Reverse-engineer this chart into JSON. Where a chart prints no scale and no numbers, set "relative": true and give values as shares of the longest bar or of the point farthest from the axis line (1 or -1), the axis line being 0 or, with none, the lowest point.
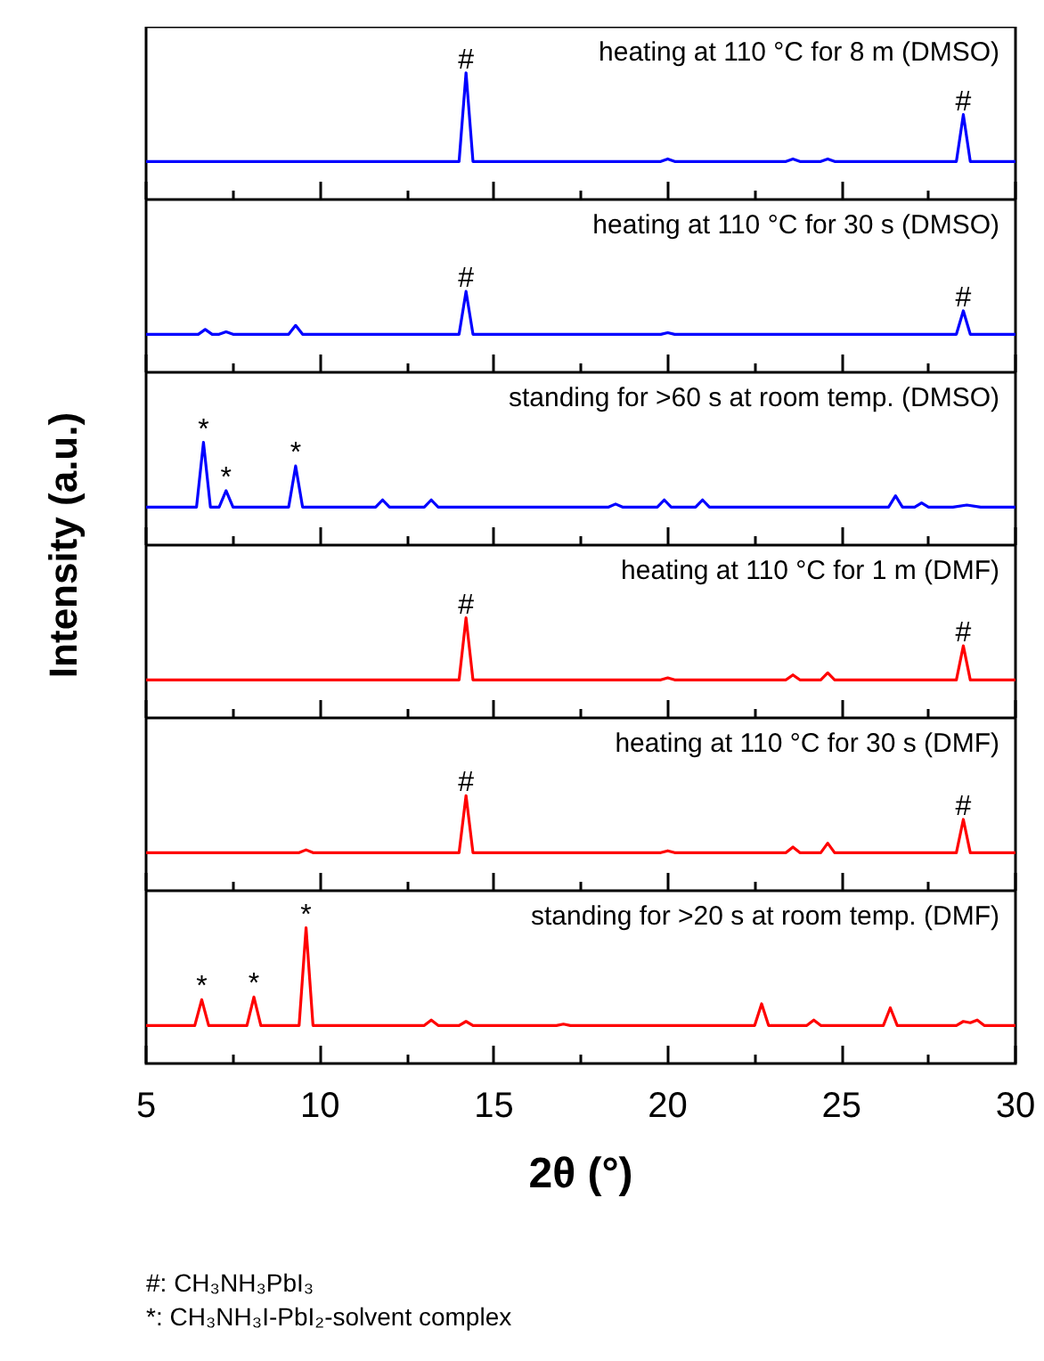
{
  "chart_data": [
    {
      "type": "line",
      "relative": true,
      "title": "heating at 110 °C for 8 m (DMSO)",
      "ylabel": "Intensity (a.u.)",
      "color": "#0000ff",
      "xlim": [
        5,
        30
      ],
      "xticks": [
        5,
        {
          "value": 7.5,
          "label": null
        },
        10,
        {
          "value": 12.5,
          "label": null
        },
        15,
        {
          "value": 17.5,
          "label": null
        },
        20,
        {
          "value": 22.5,
          "label": null
        },
        25,
        {
          "value": 27.5,
          "label": null
        },
        30
      ],
      "tick_labels": false,
      "x": [
        5,
        14.0,
        14.2,
        14.4,
        19.8,
        20.0,
        20.2,
        23.4,
        23.6,
        23.8,
        24.4,
        24.6,
        24.8,
        28.3,
        28.5,
        28.7,
        30
      ],
      "values": [
        0.3,
        0.3,
        1.0,
        0.3,
        0.3,
        0.32,
        0.3,
        0.3,
        0.32,
        0.3,
        0.3,
        0.32,
        0.3,
        0.3,
        0.67,
        0.3,
        0.3
      ],
      "annotations": [
        {
          "text": "#",
          "x": 14.2,
          "y": 1.0
        },
        {
          "text": "#",
          "x": 28.5,
          "y": 0.67
        }
      ]
    },
    {
      "type": "line",
      "relative": true,
      "title": "heating at 110 °C for 30 s (DMSO)",
      "color": "#0000ff",
      "xlim": [
        5,
        30
      ],
      "xticks": [
        5,
        {
          "value": 7.5,
          "label": null
        },
        10,
        {
          "value": 12.5,
          "label": null
        },
        15,
        {
          "value": 17.5,
          "label": null
        },
        20,
        {
          "value": 22.5,
          "label": null
        },
        25,
        {
          "value": 27.5,
          "label": null
        },
        30
      ],
      "tick_labels": false,
      "x": [
        5,
        6.5,
        6.7,
        6.9,
        7.1,
        7.3,
        7.5,
        9.1,
        9.3,
        9.5,
        14.0,
        14.2,
        14.4,
        19.8,
        20.0,
        20.2,
        28.3,
        28.5,
        28.7,
        30
      ],
      "values": [
        0.47,
        0.47,
        0.53,
        0.47,
        0.47,
        0.5,
        0.47,
        0.47,
        0.58,
        0.47,
        0.47,
        1.0,
        0.47,
        0.47,
        0.49,
        0.47,
        0.47,
        0.76,
        0.47,
        0.47
      ],
      "annotations": [
        {
          "text": "#",
          "x": 14.2,
          "y": 1.0
        },
        {
          "text": "#",
          "x": 28.5,
          "y": 0.76
        }
      ]
    },
    {
      "type": "line",
      "relative": true,
      "title": "standing for >60 s at room temp. (DMSO)",
      "color": "#0000ff",
      "xlim": [
        5,
        30
      ],
      "xticks": [
        5,
        {
          "value": 7.5,
          "label": null
        },
        10,
        {
          "value": 12.5,
          "label": null
        },
        15,
        {
          "value": 17.5,
          "label": null
        },
        20,
        {
          "value": 22.5,
          "label": null
        },
        25,
        {
          "value": 27.5,
          "label": null
        },
        30
      ],
      "tick_labels": false,
      "x": [
        5,
        6.45,
        6.65,
        6.85,
        7.1,
        7.3,
        7.5,
        9.1,
        9.3,
        9.5,
        11.6,
        11.8,
        12.0,
        13.0,
        13.2,
        13.4,
        18.3,
        18.5,
        18.7,
        19.7,
        19.9,
        20.1,
        20.8,
        21.0,
        21.2,
        26.35,
        26.55,
        26.75,
        27.1,
        27.3,
        27.5,
        28.2,
        28.6,
        29.0,
        30
      ],
      "values": [
        0.37,
        0.37,
        1.0,
        0.37,
        0.37,
        0.53,
        0.37,
        0.37,
        0.77,
        0.37,
        0.37,
        0.44,
        0.37,
        0.37,
        0.44,
        0.37,
        0.37,
        0.4,
        0.37,
        0.37,
        0.44,
        0.37,
        0.37,
        0.44,
        0.37,
        0.37,
        0.48,
        0.37,
        0.37,
        0.41,
        0.37,
        0.37,
        0.39,
        0.37,
        0.37
      ],
      "annotations": [
        {
          "text": "*",
          "x": 6.65,
          "y": 1.0
        },
        {
          "text": "*",
          "x": 7.3,
          "y": 0.53
        },
        {
          "text": "*",
          "x": 9.3,
          "y": 0.77
        }
      ]
    },
    {
      "type": "line",
      "relative": true,
      "title": "heating at 110 °C for 1 m (DMF)",
      "color": "#ff0000",
      "xlim": [
        5,
        30
      ],
      "xticks": [
        5,
        {
          "value": 7.5,
          "label": null
        },
        10,
        {
          "value": 12.5,
          "label": null
        },
        15,
        {
          "value": 17.5,
          "label": null
        },
        20,
        {
          "value": 22.5,
          "label": null
        },
        25,
        {
          "value": 27.5,
          "label": null
        },
        30
      ],
      "tick_labels": false,
      "x": [
        5,
        14.0,
        14.2,
        14.4,
        19.8,
        20.0,
        20.2,
        23.4,
        23.6,
        23.8,
        24.4,
        24.6,
        24.8,
        28.3,
        28.5,
        28.7,
        30
      ],
      "values": [
        0.38,
        0.38,
        1.0,
        0.38,
        0.38,
        0.4,
        0.38,
        0.38,
        0.43,
        0.38,
        0.38,
        0.45,
        0.38,
        0.38,
        0.72,
        0.38,
        0.38
      ],
      "annotations": [
        {
          "text": "#",
          "x": 14.2,
          "y": 1.0
        },
        {
          "text": "#",
          "x": 28.5,
          "y": 0.72
        }
      ]
    },
    {
      "type": "line",
      "relative": true,
      "title": "heating at 110 °C for 30 s (DMF)",
      "color": "#ff0000",
      "xlim": [
        5,
        30
      ],
      "xticks": [
        5,
        {
          "value": 7.5,
          "label": null
        },
        10,
        {
          "value": 12.5,
          "label": null
        },
        15,
        {
          "value": 17.5,
          "label": null
        },
        20,
        {
          "value": 22.5,
          "label": null
        },
        25,
        {
          "value": 27.5,
          "label": null
        },
        30
      ],
      "tick_labels": false,
      "x": [
        5,
        9.4,
        9.6,
        9.8,
        14.0,
        14.2,
        14.4,
        19.8,
        20.0,
        20.2,
        23.4,
        23.6,
        23.8,
        24.4,
        24.6,
        24.8,
        28.3,
        28.5,
        28.7,
        30
      ],
      "values": [
        0.4,
        0.4,
        0.43,
        0.4,
        0.4,
        1.0,
        0.4,
        0.4,
        0.42,
        0.4,
        0.4,
        0.46,
        0.4,
        0.4,
        0.5,
        0.4,
        0.4,
        0.75,
        0.4,
        0.4
      ],
      "annotations": [
        {
          "text": "#",
          "x": 14.2,
          "y": 1.0
        },
        {
          "text": "#",
          "x": 28.5,
          "y": 0.75
        }
      ]
    },
    {
      "type": "line",
      "relative": true,
      "title": "standing for >20 s at room temp. (DMF)",
      "xlabel": "2θ (°)",
      "color": "#ff0000",
      "xlim": [
        5,
        30
      ],
      "xticks": [
        5,
        {
          "value": 7.5,
          "label": null
        },
        10,
        {
          "value": 12.5,
          "label": null
        },
        15,
        {
          "value": 17.5,
          "label": null
        },
        20,
        {
          "value": 22.5,
          "label": null
        },
        25,
        {
          "value": 27.5,
          "label": null
        },
        30
      ],
      "tick_labels": "x",
      "x": [
        5,
        6.4,
        6.6,
        6.8,
        7.9,
        8.1,
        8.3,
        9.4,
        9.6,
        9.8,
        13.0,
        13.2,
        13.4,
        14.0,
        14.2,
        14.4,
        16.8,
        17.0,
        17.2,
        22.5,
        22.7,
        22.9,
        24.0,
        24.2,
        24.4,
        26.2,
        26.4,
        26.6,
        28.3,
        28.5,
        28.7,
        28.9,
        29.1,
        30
      ],
      "values": [
        0.28,
        0.28,
        0.47,
        0.28,
        0.28,
        0.49,
        0.28,
        0.28,
        1.0,
        0.28,
        0.28,
        0.32,
        0.28,
        0.28,
        0.31,
        0.28,
        0.28,
        0.29,
        0.28,
        0.28,
        0.44,
        0.28,
        0.28,
        0.32,
        0.28,
        0.28,
        0.41,
        0.28,
        0.28,
        0.31,
        0.3,
        0.32,
        0.28,
        0.28
      ],
      "annotations": [
        {
          "text": "*",
          "x": 6.6,
          "y": 0.47
        },
        {
          "text": "*",
          "x": 8.1,
          "y": 0.49
        },
        {
          "text": "*",
          "x": 9.6,
          "y": 1.0
        },
        "#: CH₃NH₃PbI₃",
        "*: CH₃NH₃I-PbI₂-solvent complex"
      ]
    }
  ]
}
